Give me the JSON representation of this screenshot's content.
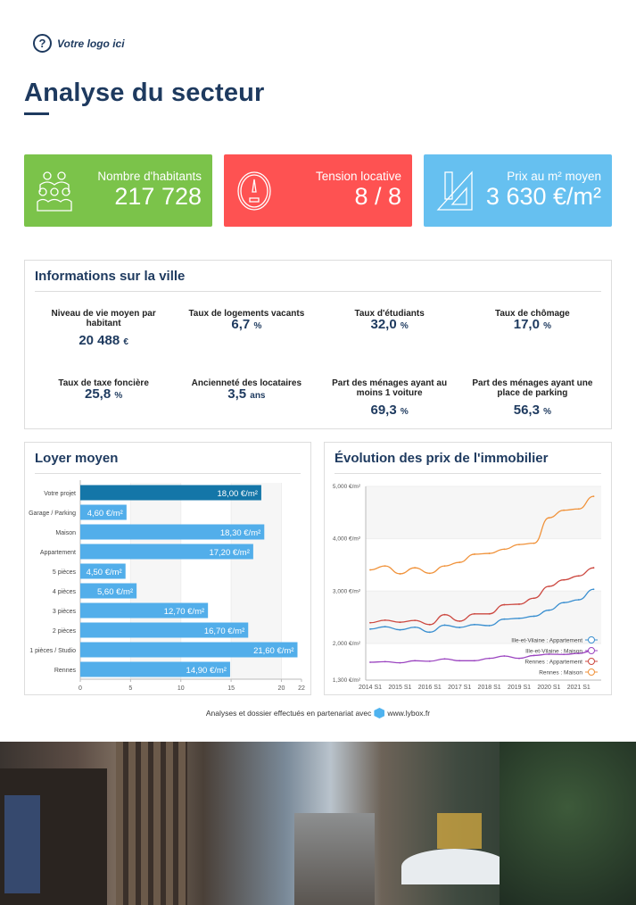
{
  "logo": {
    "text": "Votre logo ici",
    "icon": "question-circle-icon"
  },
  "title": "Analyse du secteur",
  "cards": [
    {
      "label": "Nombre d'habitants",
      "value": "217 728",
      "color": "#7bc34a",
      "icon": "people-group-icon"
    },
    {
      "label": "Tension locative",
      "value": "8 / 8",
      "color": "#fe5252",
      "icon": "gauge-icon"
    },
    {
      "label": "Prix au m² moyen",
      "value": "3 630 €/m²",
      "color": "#66c0f0",
      "icon": "ruler-square-icon"
    }
  ],
  "info": {
    "title": "Informations sur la ville",
    "items": [
      {
        "label": "Niveau de vie moyen par habitant",
        "value": "20 488",
        "unit": "€"
      },
      {
        "label": "Taux de logements vacants",
        "value": "6,7",
        "unit": "%"
      },
      {
        "label": "Taux d'étudiants",
        "value": "32,0",
        "unit": "%"
      },
      {
        "label": "Taux de chômage",
        "value": "17,0",
        "unit": "%"
      },
      {
        "label": "Taux de taxe foncière",
        "value": "25,8",
        "unit": "%"
      },
      {
        "label": "Ancienneté des locataires",
        "value": "3,5",
        "unit": "ans"
      },
      {
        "label": "Part des ménages ayant au moins 1 voiture",
        "value": "69,3",
        "unit": "%"
      },
      {
        "label": "Part des ménages ayant une place de parking",
        "value": "56,3",
        "unit": "%"
      }
    ]
  },
  "loyer": {
    "title": "Loyer moyen"
  },
  "evolution": {
    "title": "Évolution des prix de l'immobilier"
  },
  "chart_data": [
    {
      "type": "bar",
      "orientation": "horizontal",
      "categories": [
        "Votre projet",
        "Garage / Parking",
        "Maison",
        "Appartement",
        "5 pièces",
        "4 pièces",
        "3 pièces",
        "2 pièces",
        "1 pièces / Studio",
        "Rennes"
      ],
      "values": [
        18.0,
        4.6,
        18.3,
        17.2,
        4.5,
        5.6,
        12.7,
        16.7,
        21.6,
        14.9
      ],
      "labels": [
        "18,00 €/m²",
        "4,60 €/m²",
        "18,30 €/m²",
        "17,20 €/m²",
        "4,50 €/m²",
        "5,60 €/m²",
        "12,70 €/m²",
        "16,70 €/m²",
        "21,60 €/m²",
        "14,90 €/m²"
      ],
      "xlim": [
        0,
        22
      ],
      "xticks": [
        "0",
        "5",
        "10",
        "15",
        "20",
        "22"
      ],
      "highlight_color": "#1476a8",
      "bar_color": "#52aeea"
    },
    {
      "type": "line",
      "x": [
        "2014 S1",
        "2014 S2",
        "2015 S1",
        "2015 S2",
        "2016 S1",
        "2016 S2",
        "2017 S1",
        "2017 S2",
        "2018 S1",
        "2018 S2",
        "2019 S1",
        "2019 S2",
        "2020 S1",
        "2020 S2",
        "2021 S1",
        "2021 S2"
      ],
      "xticks": [
        "2014 S1",
        "2015 S1",
        "2016 S1",
        "2017 S1",
        "2018 S1",
        "2019 S1",
        "2020 S1",
        "2021 S1"
      ],
      "ylim": [
        1300,
        5000
      ],
      "yticks": [
        "1,300 €/m²",
        "2,000 €/m²",
        "3,000 €/m²",
        "4,000 €/m²",
        "5,000 €/m²"
      ],
      "ytick_values": [
        1300,
        2000,
        3000,
        4000,
        5000
      ],
      "legend": "bottom-right",
      "series": [
        {
          "name": "Ille-et-Vilaine : Appartement",
          "color": "#3a8fd0",
          "values": [
            2275,
            2320,
            2260,
            2310,
            2215,
            2350,
            2305,
            2360,
            2340,
            2465,
            2480,
            2520,
            2635,
            2780,
            2835,
            3035
          ]
        },
        {
          "name": "Ille-et-Vilaine : Maison",
          "color": "#9b45c0",
          "values": [
            1641,
            1652,
            1630,
            1670,
            1660,
            1705,
            1670,
            1670,
            1715,
            1760,
            1715,
            1770,
            1795,
            1790,
            1810,
            1865
          ]
        },
        {
          "name": "Rennes : Appartement",
          "color": "#cc4840",
          "values": [
            2395,
            2445,
            2405,
            2440,
            2360,
            2550,
            2425,
            2565,
            2565,
            2740,
            2750,
            2865,
            3090,
            3215,
            3290,
            3445
          ]
        },
        {
          "name": "Rennes : Maison",
          "color": "#f0923a",
          "values": [
            3405,
            3480,
            3330,
            3445,
            3340,
            3480,
            3550,
            3705,
            3720,
            3800,
            3890,
            3915,
            4400,
            4545,
            4570,
            4810
          ]
        }
      ]
    }
  ],
  "footer": {
    "text": "Analyses et dossier effectués en partenariat avec",
    "link": "www.lybox.fr"
  }
}
